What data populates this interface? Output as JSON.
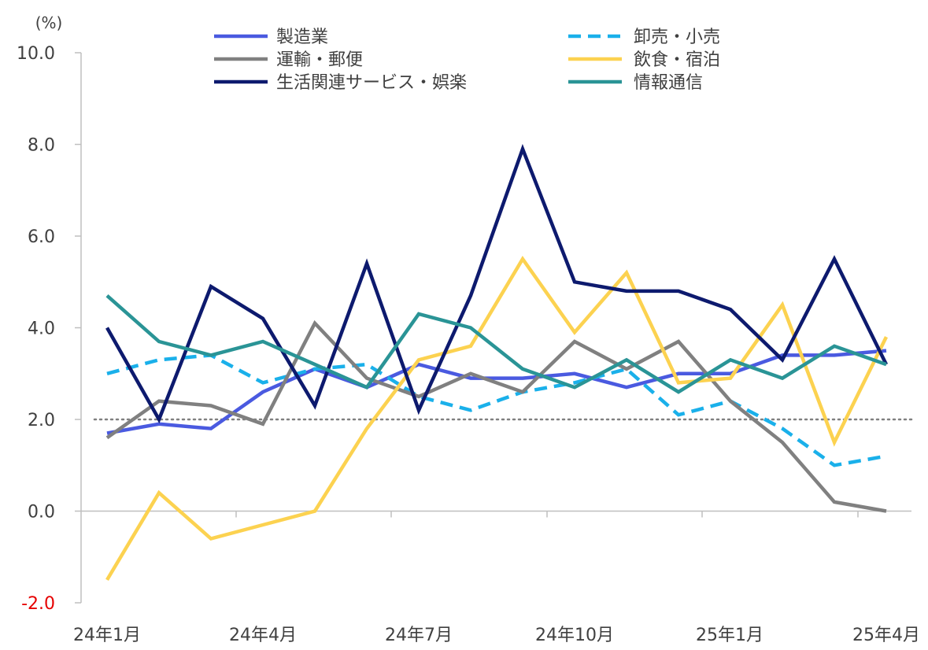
{
  "chart_data": {
    "type": "line",
    "unit_label": "(%)",
    "ylim": [
      -2.0,
      10.0
    ],
    "y_ticks": [
      "10.0",
      "8.0",
      "6.0",
      "4.0",
      "2.0",
      "0.0",
      "-2.0"
    ],
    "y_tick_values": [
      10,
      8,
      6,
      4,
      2,
      0,
      -2
    ],
    "negative_tick_color": "#e60000",
    "x_labels": [
      "24年1月",
      "24年4月",
      "24年7月",
      "24年10月",
      "25年1月",
      "25年4月"
    ],
    "x_label_indices": [
      0,
      3,
      6,
      9,
      12,
      15
    ],
    "x_count": 16,
    "reference_line": {
      "value": 2.0,
      "style": "dotted",
      "color": "#808080"
    },
    "legend_position": "top",
    "series": [
      {
        "name": "製造業",
        "color": "#4a5ae0",
        "dash": "solid",
        "values": [
          1.7,
          1.9,
          1.8,
          2.6,
          3.1,
          2.7,
          3.2,
          2.9,
          2.9,
          3.0,
          2.7,
          3.0,
          3.0,
          3.4,
          3.4,
          3.5
        ]
      },
      {
        "name": "卸売・小売",
        "color": "#1ab0ea",
        "dash": "dashed",
        "values": [
          3.0,
          3.3,
          3.4,
          2.8,
          3.1,
          3.2,
          2.5,
          2.2,
          2.6,
          2.8,
          3.1,
          2.1,
          2.4,
          1.8,
          1.0,
          1.2
        ]
      },
      {
        "name": "運輸・郵便",
        "color": "#808080",
        "dash": "solid",
        "values": [
          1.6,
          2.4,
          2.3,
          1.9,
          4.1,
          2.9,
          2.5,
          3.0,
          2.6,
          3.7,
          3.1,
          3.7,
          2.4,
          1.5,
          0.2,
          0.0
        ]
      },
      {
        "name": "飲食・宿泊",
        "color": "#fcd250",
        "dash": "solid",
        "values": [
          -1.5,
          0.4,
          -0.6,
          -0.3,
          0.0,
          1.8,
          3.3,
          3.6,
          5.5,
          3.9,
          5.2,
          2.8,
          2.9,
          4.5,
          1.5,
          3.8
        ]
      },
      {
        "name": "生活関連サービス・娯楽",
        "color": "#0d1a6e",
        "dash": "solid",
        "values": [
          4.0,
          2.0,
          4.9,
          4.2,
          2.3,
          5.4,
          2.2,
          4.7,
          7.9,
          5.0,
          4.8,
          4.8,
          4.4,
          3.3,
          5.5,
          3.2
        ]
      },
      {
        "name": "情報通信",
        "color": "#2a9496",
        "dash": "solid",
        "values": [
          4.7,
          3.7,
          3.4,
          3.7,
          3.2,
          2.7,
          4.3,
          4.0,
          3.1,
          2.7,
          3.3,
          2.6,
          3.3,
          2.9,
          3.6,
          3.2
        ]
      }
    ]
  }
}
